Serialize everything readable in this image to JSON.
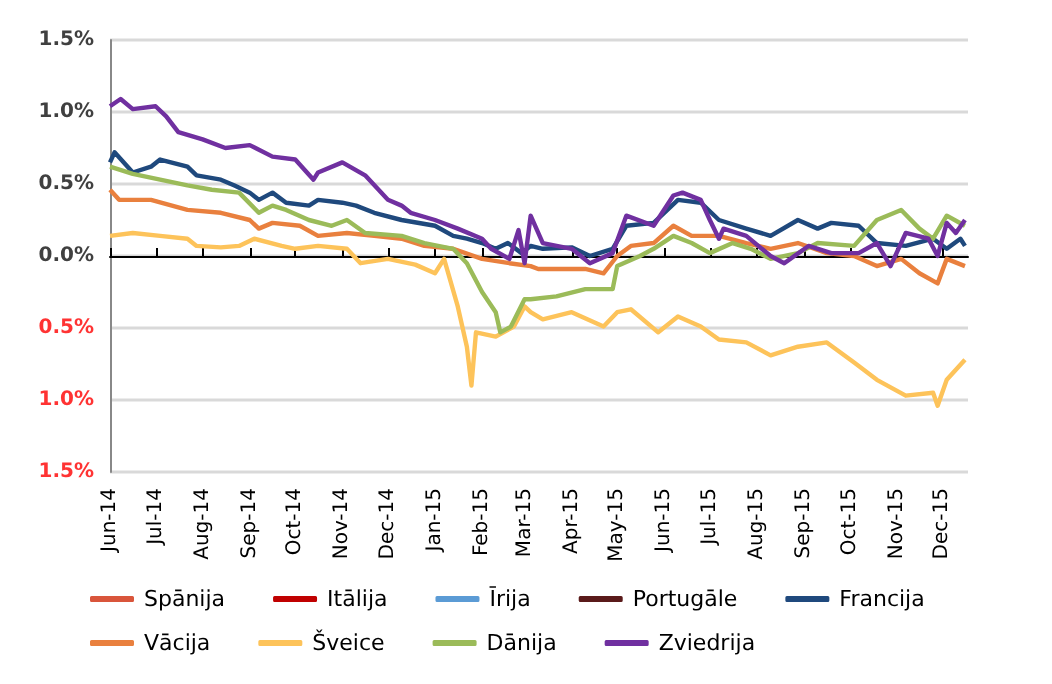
{
  "chart_data": {
    "type": "line",
    "xlim": [
      "2014-06-01",
      "2015-12-18"
    ],
    "xticks": [
      {
        "value": "2014-06-01",
        "label": "Jun-14"
      },
      {
        "value": "2014-07-01",
        "label": "Jul-14"
      },
      {
        "value": "2014-08-01",
        "label": "Aug-14"
      },
      {
        "value": "2014-09-01",
        "label": "Sep-14"
      },
      {
        "value": "2014-10-01",
        "label": "Oct-14"
      },
      {
        "value": "2014-11-01",
        "label": "Nov-14"
      },
      {
        "value": "2014-12-01",
        "label": "Dec-14"
      },
      {
        "value": "2015-01-01",
        "label": "Jan-15"
      },
      {
        "value": "2015-02-01",
        "label": "Feb-15"
      },
      {
        "value": "2015-03-01",
        "label": "Mar-15"
      },
      {
        "value": "2015-04-01",
        "label": "Apr-15"
      },
      {
        "value": "2015-05-01",
        "label": "May-15"
      },
      {
        "value": "2015-06-01",
        "label": "Jun-15"
      },
      {
        "value": "2015-07-01",
        "label": "Jul-15"
      },
      {
        "value": "2015-08-01",
        "label": "Aug-15"
      },
      {
        "value": "2015-09-01",
        "label": "Sep-15"
      },
      {
        "value": "2015-10-01",
        "label": "Oct-15"
      },
      {
        "value": "2015-11-01",
        "label": "Nov-15"
      },
      {
        "value": "2015-12-01",
        "label": "Dec-15"
      }
    ],
    "ylim": [
      -1.5,
      1.5
    ],
    "yticks": [
      {
        "value": -1.5,
        "label": "1.5%"
      },
      {
        "value": -1.0,
        "label": "1.0%"
      },
      {
        "value": -0.5,
        "label": "0.5%"
      },
      {
        "value": 0,
        "label": "0.0%"
      },
      {
        "value": 0.5,
        "label": "0.5%"
      },
      {
        "value": 1.0,
        "label": "1.0%"
      },
      {
        "value": 1.5,
        "label": "1.5%"
      }
    ],
    "grid": "y",
    "legend": "bottom",
    "marker": "none",
    "line_style": "solid",
    "series": [
      {
        "name": "Spānija",
        "color": "#d9553b"
      },
      {
        "name": "Itālija",
        "color": "#c00000"
      },
      {
        "name": "Īrija",
        "color": "#5b9bd5"
      },
      {
        "name": "Portugāle",
        "color": "#5a1a1a"
      },
      {
        "name": "Francija",
        "color": "#1f497d",
        "x": [
          "2014-06-01",
          "2014-06-04",
          "2014-06-16",
          "2014-06-28",
          "2014-07-04",
          "2014-07-22",
          "2014-07-28",
          "2014-08-13",
          "2014-08-22",
          "2014-09-01",
          "2014-09-07",
          "2014-09-16",
          "2014-09-25",
          "2014-10-10",
          "2014-10-16",
          "2014-11-01",
          "2014-11-10",
          "2014-11-22",
          "2014-12-10",
          "2015-01-01",
          "2015-01-13",
          "2015-01-22",
          "2015-02-01",
          "2015-02-10",
          "2015-02-18",
          "2015-02-27",
          "2015-03-05",
          "2015-03-13",
          "2015-04-01",
          "2015-04-13",
          "2015-04-28",
          "2015-05-07",
          "2015-05-25",
          "2015-06-10",
          "2015-06-25",
          "2015-07-07",
          "2015-07-25",
          "2015-08-10",
          "2015-08-28",
          "2015-09-10",
          "2015-09-19",
          "2015-10-07",
          "2015-10-19",
          "2015-11-07",
          "2015-11-25",
          "2015-12-04",
          "2015-12-13",
          "2015-12-16"
        ],
        "values": [
          0.65,
          0.72,
          0.58,
          0.62,
          0.67,
          0.62,
          0.56,
          0.53,
          0.49,
          0.44,
          0.39,
          0.44,
          0.37,
          0.35,
          0.39,
          0.37,
          0.35,
          0.3,
          0.25,
          0.21,
          0.14,
          0.12,
          0.09,
          0.05,
          0.09,
          0.02,
          0.07,
          0.05,
          0.06,
          0.0,
          0.05,
          0.21,
          0.23,
          0.39,
          0.37,
          0.25,
          0.19,
          0.14,
          0.25,
          0.19,
          0.23,
          0.21,
          0.09,
          0.07,
          0.12,
          0.05,
          0.12,
          0.07
        ]
      },
      {
        "name": "Vācija",
        "color": "#e9803e",
        "x": [
          "2014-06-01",
          "2014-06-07",
          "2014-06-28",
          "2014-07-22",
          "2014-08-13",
          "2014-09-01",
          "2014-09-07",
          "2014-09-16",
          "2014-10-04",
          "2014-10-16",
          "2014-11-04",
          "2014-11-22",
          "2014-12-10",
          "2014-12-25",
          "2015-01-13",
          "2015-02-01",
          "2015-02-19",
          "2015-03-05",
          "2015-03-10",
          "2015-03-22",
          "2015-04-10",
          "2015-04-22",
          "2015-05-01",
          "2015-05-10",
          "2015-05-25",
          "2015-06-07",
          "2015-06-19",
          "2015-07-07",
          "2015-07-25",
          "2015-08-10",
          "2015-08-28",
          "2015-09-16",
          "2015-10-04",
          "2015-10-19",
          "2015-11-04",
          "2015-11-16",
          "2015-11-28",
          "2015-12-04",
          "2015-12-16"
        ],
        "values": [
          0.46,
          0.39,
          0.39,
          0.32,
          0.3,
          0.25,
          0.19,
          0.23,
          0.21,
          0.14,
          0.16,
          0.14,
          0.12,
          0.07,
          0.05,
          -0.02,
          -0.05,
          -0.07,
          -0.09,
          -0.09,
          -0.09,
          -0.12,
          0.0,
          0.07,
          0.09,
          0.21,
          0.14,
          0.14,
          0.09,
          0.05,
          0.09,
          0.02,
          0.0,
          -0.07,
          -0.02,
          -0.12,
          -0.19,
          -0.02,
          -0.07
        ]
      },
      {
        "name": "Šveice",
        "color": "#fdc35a",
        "x": [
          "2014-06-01",
          "2014-06-16",
          "2014-07-04",
          "2014-07-22",
          "2014-07-28",
          "2014-08-13",
          "2014-08-25",
          "2014-09-04",
          "2014-09-22",
          "2014-10-01",
          "2014-10-16",
          "2014-11-04",
          "2014-11-13",
          "2014-12-01",
          "2014-12-19",
          "2015-01-01",
          "2015-01-07",
          "2015-01-16",
          "2015-01-22",
          "2015-01-25",
          "2015-01-28",
          "2015-02-10",
          "2015-02-22",
          "2015-03-01",
          "2015-03-05",
          "2015-03-13",
          "2015-04-01",
          "2015-04-22",
          "2015-05-01",
          "2015-05-10",
          "2015-05-28",
          "2015-06-10",
          "2015-06-25",
          "2015-07-07",
          "2015-07-25",
          "2015-08-10",
          "2015-08-28",
          "2015-09-16",
          "2015-10-04",
          "2015-10-19",
          "2015-11-07",
          "2015-11-25",
          "2015-11-28",
          "2015-12-04",
          "2015-12-16"
        ],
        "values": [
          0.14,
          0.16,
          0.14,
          0.12,
          0.07,
          0.06,
          0.07,
          0.12,
          0.07,
          0.05,
          0.07,
          0.05,
          -0.05,
          -0.02,
          -0.06,
          -0.12,
          -0.02,
          -0.35,
          -0.63,
          -0.9,
          -0.53,
          -0.56,
          -0.49,
          -0.35,
          -0.39,
          -0.44,
          -0.39,
          -0.49,
          -0.39,
          -0.37,
          -0.53,
          -0.42,
          -0.49,
          -0.58,
          -0.6,
          -0.69,
          -0.63,
          -0.6,
          -0.74,
          -0.86,
          -0.97,
          -0.95,
          -1.04,
          -0.86,
          -0.72
        ]
      },
      {
        "name": "Dānija",
        "color": "#9bbb59",
        "x": [
          "2014-06-01",
          "2014-06-16",
          "2014-07-04",
          "2014-07-22",
          "2014-08-07",
          "2014-08-25",
          "2014-09-07",
          "2014-09-16",
          "2014-09-25",
          "2014-10-10",
          "2014-10-25",
          "2014-11-04",
          "2014-11-16",
          "2014-12-10",
          "2014-12-25",
          "2015-01-13",
          "2015-01-22",
          "2015-02-01",
          "2015-02-10",
          "2015-02-13",
          "2015-02-20",
          "2015-03-01",
          "2015-03-05",
          "2015-03-22",
          "2015-04-10",
          "2015-04-28",
          "2015-05-01",
          "2015-05-16",
          "2015-05-25",
          "2015-06-07",
          "2015-06-19",
          "2015-07-01",
          "2015-07-16",
          "2015-07-28",
          "2015-08-10",
          "2015-08-28",
          "2015-09-10",
          "2015-10-04",
          "2015-10-19",
          "2015-11-04",
          "2015-11-16",
          "2015-11-25",
          "2015-12-04",
          "2015-12-16"
        ],
        "values": [
          0.62,
          0.57,
          0.53,
          0.49,
          0.46,
          0.44,
          0.3,
          0.35,
          0.32,
          0.25,
          0.21,
          0.25,
          0.16,
          0.14,
          0.09,
          0.05,
          -0.05,
          -0.25,
          -0.39,
          -0.53,
          -0.49,
          -0.3,
          -0.3,
          -0.28,
          -0.23,
          -0.23,
          -0.07,
          0.0,
          0.05,
          0.14,
          0.09,
          0.02,
          0.09,
          0.05,
          -0.02,
          0.02,
          0.09,
          0.07,
          0.25,
          0.32,
          0.19,
          0.12,
          0.28,
          0.21
        ]
      },
      {
        "name": "Zviedrija",
        "color": "#7030a0",
        "x": [
          "2014-06-01",
          "2014-06-08",
          "2014-06-16",
          "2014-07-01",
          "2014-07-08",
          "2014-07-16",
          "2014-08-01",
          "2014-08-16",
          "2014-09-01",
          "2014-09-16",
          "2014-10-01",
          "2014-10-13",
          "2014-10-16",
          "2014-11-01",
          "2014-11-16",
          "2014-12-01",
          "2014-12-10",
          "2014-12-16",
          "2015-01-01",
          "2015-01-16",
          "2015-02-01",
          "2015-02-07",
          "2015-02-19",
          "2015-02-25",
          "2015-03-01",
          "2015-03-05",
          "2015-03-13",
          "2015-04-01",
          "2015-04-13",
          "2015-04-28",
          "2015-05-07",
          "2015-05-25",
          "2015-06-07",
          "2015-06-13",
          "2015-06-25",
          "2015-07-01",
          "2015-07-07",
          "2015-07-10",
          "2015-07-25",
          "2015-08-10",
          "2015-08-19",
          "2015-09-04",
          "2015-09-19",
          "2015-10-07",
          "2015-10-19",
          "2015-10-28",
          "2015-11-07",
          "2015-11-22",
          "2015-11-28",
          "2015-12-04",
          "2015-12-10",
          "2015-12-16"
        ],
        "values": [
          1.04,
          1.09,
          1.02,
          1.04,
          0.97,
          0.86,
          0.81,
          0.75,
          0.77,
          0.69,
          0.67,
          0.53,
          0.58,
          0.65,
          0.56,
          0.39,
          0.35,
          0.3,
          0.25,
          0.19,
          0.12,
          0.05,
          -0.02,
          0.18,
          -0.05,
          0.28,
          0.09,
          0.05,
          -0.05,
          0.02,
          0.28,
          0.21,
          0.42,
          0.44,
          0.39,
          0.25,
          0.12,
          0.19,
          0.14,
          0.0,
          -0.05,
          0.07,
          0.02,
          0.02,
          0.09,
          -0.07,
          0.16,
          0.12,
          0.0,
          0.23,
          0.16,
          0.25
        ]
      }
    ]
  }
}
